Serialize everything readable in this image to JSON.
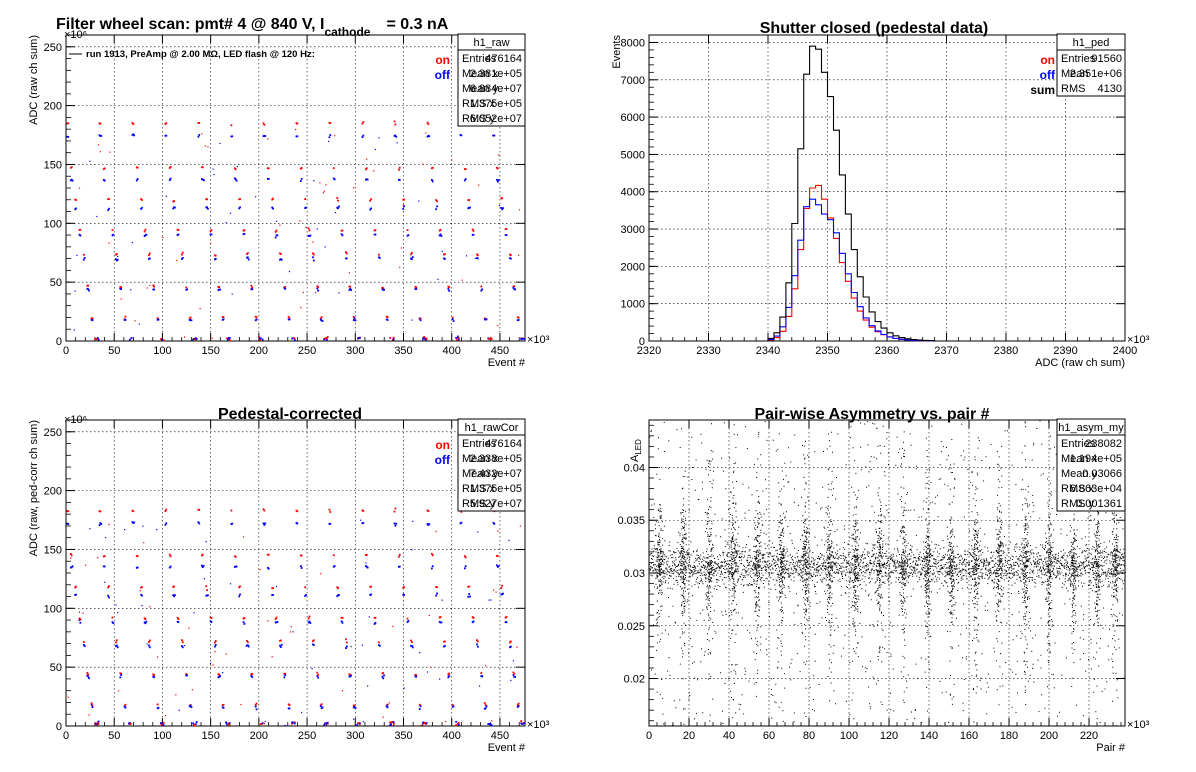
{
  "chart_data": [
    {
      "id": "raw",
      "type": "scatter",
      "title_main": "Filter wheel scan: pmt#   4 @   840 V, I",
      "title_sub": "cathode",
      "title_end": "= 0.3 nA",
      "xlabel": "Event #",
      "ylabel": "ADC (raw ch sum)",
      "x_multiplier": "×10³",
      "y_multiplier": "×10⁶",
      "xlim": [
        0,
        476
      ],
      "ylim": [
        0,
        260
      ],
      "x_ticks": [
        0,
        50,
        100,
        150,
        200,
        250,
        300,
        350,
        400,
        450
      ],
      "y_ticks": [
        0,
        50,
        100,
        150,
        200,
        250
      ],
      "grid": true,
      "annotation": "run 1913, PreAmp @ 2.00 MΩ, LED flash @  120 Hz:",
      "legend_placement": "top-right",
      "series": [
        {
          "name": "on",
          "color": "#ff0000",
          "levels": [
            185,
            147,
            120,
            94,
            74,
            46,
            20,
            2
          ]
        },
        {
          "name": "off",
          "color": "#0000ff",
          "levels": [
            174,
            137,
            113,
            90,
            70,
            44,
            18,
            2
          ]
        }
      ],
      "stats_box": {
        "name": "h1_raw",
        "rows": [
          {
            "label": "Entries",
            "value": "476164"
          },
          {
            "label": "Mean x",
            "value": "2.381e+05"
          },
          {
            "label": "Mean y",
            "value": "6.884e+07"
          },
          {
            "label": "RMS x",
            "value": "1.375e+05"
          },
          {
            "label": "RMS y",
            "value": "6.052e+07"
          }
        ]
      }
    },
    {
      "id": "ped",
      "type": "line",
      "title_main": "Shutter closed (pedestal data)",
      "xlabel": "ADC (raw ch sum)",
      "ylabel": "Events",
      "x_multiplier": "×10³",
      "xlim": [
        2320,
        2400
      ],
      "ylim": [
        0,
        8200
      ],
      "x_ticks": [
        2320,
        2330,
        2340,
        2350,
        2360,
        2370,
        2380,
        2390,
        2400
      ],
      "y_ticks": [
        0,
        1000,
        2000,
        3000,
        4000,
        5000,
        6000,
        7000,
        8000
      ],
      "grid": true,
      "legend_placement": "top-right",
      "bin_edges_start": 2340,
      "bin_width": 1,
      "series": [
        {
          "name": "on",
          "color": "#ff0000",
          "values": [
            30,
            90,
            260,
            660,
            1400,
            2450,
            3550,
            4100,
            4170,
            3800,
            3300,
            2750,
            2100,
            1600,
            1150,
            800,
            560,
            370,
            250,
            170,
            110,
            70,
            45,
            30,
            20,
            12,
            8,
            5
          ]
        },
        {
          "name": "off",
          "color": "#0000ff",
          "values": [
            40,
            130,
            380,
            900,
            1750,
            2700,
            3600,
            3800,
            3650,
            3400,
            3250,
            2900,
            2350,
            1800,
            1300,
            920,
            620,
            410,
            270,
            175,
            110,
            70,
            45,
            30,
            20,
            12,
            8,
            5
          ]
        },
        {
          "name": "sum",
          "color": "#000000",
          "values": [
            70,
            220,
            640,
            1560,
            3150,
            5150,
            7150,
            7900,
            7820,
            7200,
            6550,
            5650,
            4450,
            3400,
            2450,
            1720,
            1180,
            780,
            520,
            345,
            220,
            140,
            90,
            60,
            40,
            24,
            16,
            10
          ]
        }
      ],
      "stats_box": {
        "name": "h1_ped",
        "rows": [
          {
            "label": "Entries",
            "value": "91560"
          },
          {
            "label": "Mean",
            "value": "2.351e+06"
          },
          {
            "label": "RMS",
            "value": "4130"
          }
        ]
      }
    },
    {
      "id": "rawCor",
      "type": "scatter",
      "title_main": "Pedestal-corrected",
      "xlabel": "Event #",
      "ylabel": "ADC (raw, ped-corr ch sum)",
      "x_multiplier": "×10³",
      "y_multiplier": "×10⁶",
      "xlim": [
        0,
        476
      ],
      "ylim": [
        0,
        260
      ],
      "x_ticks": [
        0,
        50,
        100,
        150,
        200,
        250,
        300,
        350,
        400,
        450
      ],
      "y_ticks": [
        0,
        50,
        100,
        150,
        200,
        250
      ],
      "grid": true,
      "legend_placement": "top-right",
      "series": [
        {
          "name": "on",
          "color": "#ff0000",
          "levels": [
            183,
            145,
            118,
            92,
            72,
            44,
            18,
            2
          ]
        },
        {
          "name": "off",
          "color": "#0000ff",
          "levels": [
            172,
            135,
            111,
            88,
            68,
            42,
            16,
            2
          ]
        }
      ],
      "stats_box": {
        "name": "h1_rawCor",
        "rows": [
          {
            "label": "Entries",
            "value": "476164"
          },
          {
            "label": "Mean x",
            "value": "2.338e+05"
          },
          {
            "label": "Mean y",
            "value": "7.432e+07"
          },
          {
            "label": "RMS x",
            "value": "1.375e+05"
          },
          {
            "label": "RMS y",
            "value": "5.927e+07"
          }
        ]
      }
    },
    {
      "id": "asym",
      "type": "scatter",
      "title_main": "Pair-wise Asymmetry vs. pair #",
      "xlabel": "Pair #",
      "ylabel_main": "A",
      "ylabel_sub": "LED",
      "x_multiplier": "×10³",
      "xlim": [
        0,
        238
      ],
      "ylim": [
        0.0155,
        0.0445
      ],
      "x_ticks": [
        0,
        20,
        40,
        60,
        80,
        100,
        120,
        140,
        160,
        180,
        200,
        220
      ],
      "y_ticks": [
        0.02,
        0.025,
        0.03,
        0.035,
        0.04
      ],
      "y_tick_labels": [
        "0.02",
        "0.025",
        "0.03",
        "0.035",
        "0.04"
      ],
      "grid": true,
      "center": 0.0307,
      "band_half_width": 0.0009,
      "spike_positions": [
        5,
        17,
        30,
        42,
        54,
        66,
        78,
        90,
        103,
        115,
        127,
        139,
        151,
        163,
        175,
        188,
        200,
        212,
        224,
        233
      ],
      "stats_box": {
        "name": "h1_asym_my",
        "rows": [
          {
            "label": "Entries",
            "value": "238082"
          },
          {
            "label": "Mean x",
            "value": "1.194e+05"
          },
          {
            "label": "Mean y",
            "value": "0.03066"
          },
          {
            "label": "RMS x",
            "value": "6.863e+04"
          },
          {
            "label": "RMS y",
            "value": "0.001361"
          }
        ]
      }
    }
  ]
}
